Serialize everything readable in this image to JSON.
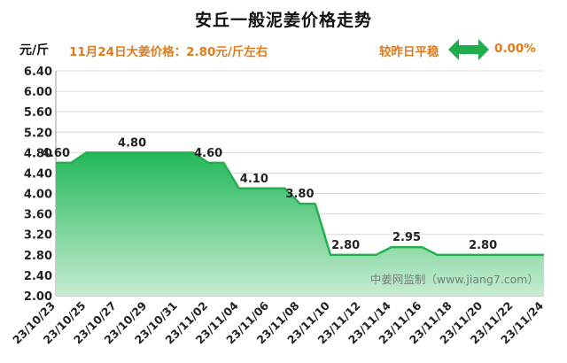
{
  "header": {
    "title": "安丘一般泥姜价格走势",
    "unit": "元/斤",
    "price_note": "11月24日大姜价格：2.80元/斤左右",
    "compare_text": "较昨日平稳",
    "compare_pct": "0.00%",
    "compare_icon": "double-arrow-icon"
  },
  "watermark": "中姜网监制（www.jiang7.com）",
  "colors": {
    "line": "#22b14c",
    "fill_top": "#22b85a",
    "fill_bottom": "#c7ecd1",
    "accent": "#e07b1a",
    "grid": "#d9d9d9"
  },
  "chart_data": {
    "type": "area",
    "x_ticks": [
      "23/10/23",
      "23/10/25",
      "23/10/27",
      "23/10/29",
      "23/10/31",
      "23/11/02",
      "23/11/04",
      "23/11/06",
      "23/11/08",
      "23/11/10",
      "23/11/12",
      "23/11/14",
      "23/11/16",
      "23/11/18",
      "23/11/20",
      "23/11/22",
      "23/11/24"
    ],
    "points": [
      {
        "x": "23/10/23",
        "y": 4.6
      },
      {
        "x": "23/10/24",
        "y": 4.6
      },
      {
        "x": "23/10/25",
        "y": 4.8
      },
      {
        "x": "23/10/26",
        "y": 4.8
      },
      {
        "x": "23/10/27",
        "y": 4.8
      },
      {
        "x": "23/10/28",
        "y": 4.8
      },
      {
        "x": "23/10/29",
        "y": 4.8
      },
      {
        "x": "23/10/30",
        "y": 4.8
      },
      {
        "x": "23/10/31",
        "y": 4.8
      },
      {
        "x": "23/11/01",
        "y": 4.8
      },
      {
        "x": "23/11/02",
        "y": 4.6
      },
      {
        "x": "23/11/03",
        "y": 4.6
      },
      {
        "x": "23/11/04",
        "y": 4.1
      },
      {
        "x": "23/11/05",
        "y": 4.1
      },
      {
        "x": "23/11/06",
        "y": 4.1
      },
      {
        "x": "23/11/07",
        "y": 4.1
      },
      {
        "x": "23/11/08",
        "y": 3.8
      },
      {
        "x": "23/11/09",
        "y": 3.8
      },
      {
        "x": "23/11/10",
        "y": 2.8
      },
      {
        "x": "23/11/11",
        "y": 2.8
      },
      {
        "x": "23/11/12",
        "y": 2.8
      },
      {
        "x": "23/11/13",
        "y": 2.8
      },
      {
        "x": "23/11/14",
        "y": 2.95
      },
      {
        "x": "23/11/15",
        "y": 2.95
      },
      {
        "x": "23/11/16",
        "y": 2.95
      },
      {
        "x": "23/11/17",
        "y": 2.8
      },
      {
        "x": "23/11/18",
        "y": 2.8
      },
      {
        "x": "23/11/19",
        "y": 2.8
      },
      {
        "x": "23/11/20",
        "y": 2.8
      },
      {
        "x": "23/11/21",
        "y": 2.8
      },
      {
        "x": "23/11/22",
        "y": 2.8
      },
      {
        "x": "23/11/23",
        "y": 2.8
      },
      {
        "x": "23/11/24",
        "y": 2.8
      }
    ],
    "data_labels": [
      {
        "x": "23/10/23",
        "y": 4.6,
        "text": "4.60"
      },
      {
        "x": "23/10/28",
        "y": 4.8,
        "text": "4.80"
      },
      {
        "x": "23/11/02",
        "y": 4.6,
        "text": "4.60"
      },
      {
        "x": "23/11/05",
        "y": 4.1,
        "text": "4.10"
      },
      {
        "x": "23/11/08",
        "y": 3.8,
        "text": "3.80"
      },
      {
        "x": "23/11/11",
        "y": 2.8,
        "text": "2.80"
      },
      {
        "x": "23/11/15",
        "y": 2.95,
        "text": "2.95"
      },
      {
        "x": "23/11/20",
        "y": 2.8,
        "text": "2.80"
      }
    ],
    "y_ticks": [
      "2.00",
      "2.40",
      "2.80",
      "3.20",
      "3.60",
      "4.00",
      "4.40",
      "4.80",
      "5.20",
      "5.60",
      "6.00",
      "6.40"
    ],
    "ylim": [
      2.0,
      6.4
    ],
    "grid": true,
    "legend": "none"
  }
}
